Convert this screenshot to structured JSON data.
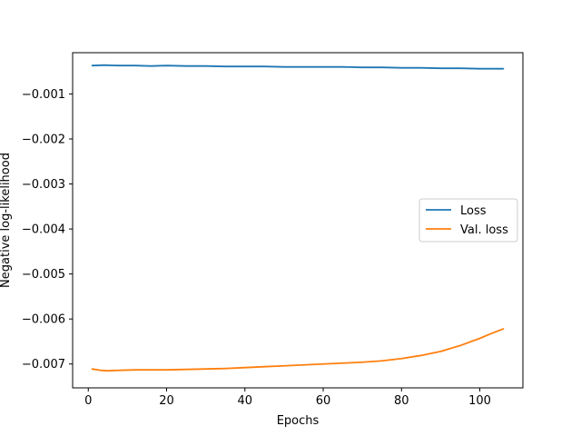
{
  "chart_data": {
    "type": "line",
    "title": "",
    "xlabel": "Epochs",
    "ylabel": "Negative log-likelihood",
    "xlim": [
      -4,
      111
    ],
    "ylim": [
      -0.00753,
      -8.33e-05
    ],
    "x_ticks": [
      0,
      20,
      40,
      60,
      80,
      100
    ],
    "x_tick_labels": [
      "0",
      "20",
      "40",
      "60",
      "80",
      "100"
    ],
    "y_ticks": [
      -0.001,
      -0.002,
      -0.003,
      -0.004,
      -0.005,
      -0.006,
      -0.007
    ],
    "y_tick_labels": [
      "−0.001",
      "−0.002",
      "−0.003",
      "−0.004",
      "−0.005",
      "−0.006",
      "−0.007"
    ],
    "grid": false,
    "legend": "center-right",
    "series": [
      {
        "name": "Loss",
        "color": "#1f77b4",
        "x": [
          1,
          4,
          8,
          12,
          16,
          20,
          25,
          30,
          35,
          40,
          45,
          50,
          55,
          60,
          65,
          70,
          75,
          80,
          85,
          90,
          95,
          100,
          106
        ],
        "y": [
          -0.00037,
          -0.00036,
          -0.00037,
          -0.00037,
          -0.00038,
          -0.00037,
          -0.00038,
          -0.00038,
          -0.00039,
          -0.00039,
          -0.00039,
          -0.0004,
          -0.0004,
          -0.0004,
          -0.0004,
          -0.00041,
          -0.00041,
          -0.00042,
          -0.00042,
          -0.00043,
          -0.00043,
          -0.00044,
          -0.00044
        ]
      },
      {
        "name": "Val. loss",
        "color": "#ff7f0e",
        "x": [
          1,
          3,
          5,
          8,
          12,
          16,
          20,
          25,
          30,
          35,
          40,
          45,
          50,
          55,
          60,
          65,
          70,
          75,
          80,
          85,
          90,
          95,
          100,
          103,
          106
        ],
        "y": [
          -0.00711,
          -0.00714,
          -0.00715,
          -0.00714,
          -0.00713,
          -0.00713,
          -0.00713,
          -0.00712,
          -0.00711,
          -0.0071,
          -0.00708,
          -0.00706,
          -0.00704,
          -0.00702,
          -0.007,
          -0.00698,
          -0.00696,
          -0.00693,
          -0.00688,
          -0.00681,
          -0.00672,
          -0.00659,
          -0.00643,
          -0.00632,
          -0.00622
        ]
      }
    ]
  }
}
